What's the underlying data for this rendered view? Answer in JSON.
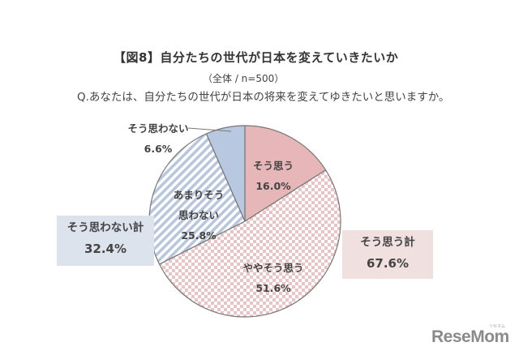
{
  "header": {
    "title": "【図8】自分たちの世代が日本を変えていきたいか",
    "subtitle": "（全体 / n=500）",
    "question": "Q.あなたは、自分たちの世代が日本の将来を変えてゆきたいと思いますか。"
  },
  "labels": {
    "soo_omou": {
      "name": "そう思う",
      "value": "16.0%"
    },
    "yaya": {
      "name": "ややそう思う",
      "value": "51.6%"
    },
    "amari_1": "あまりそう",
    "amari_2": "思わない",
    "amari_value": "25.8%",
    "omowanai": {
      "name": "そう思わない",
      "value": "6.6%"
    }
  },
  "totals": {
    "negative": {
      "label": "そう思わない計",
      "value": "32.4%"
    },
    "positive": {
      "label": "そう思う計",
      "value": "67.6%"
    }
  },
  "logo": {
    "text": "ReseMom",
    "kana": "リセマム"
  },
  "colors": {
    "soo_omou": "#e6b6b8",
    "yaya_check": "#e8c4c6",
    "amari_stripe": "#b8c6dc",
    "omowanai": "#b7c8e0",
    "box_negative": "#dde3ec",
    "box_positive": "#f1e0e0"
  },
  "chart_data": {
    "type": "pie",
    "title": "【図8】自分たちの世代が日本を変えていきたいか",
    "subtitle": "（全体 / n=500）",
    "question": "Q.あなたは、自分たちの世代が日本の将来を変えてゆきたいと思いますか。",
    "categories": [
      "そう思う",
      "ややそう思う",
      "あまりそう思わない",
      "そう思わない"
    ],
    "values": [
      16.0,
      51.6,
      25.8,
      6.6
    ],
    "start_angle": "12 o'clock, clockwise",
    "annotations": [
      {
        "text": "そう思わない計",
        "value": 32.4,
        "position": "left"
      },
      {
        "text": "そう思う計",
        "value": 67.6,
        "position": "right"
      }
    ],
    "legend": "none (direct labels)"
  }
}
